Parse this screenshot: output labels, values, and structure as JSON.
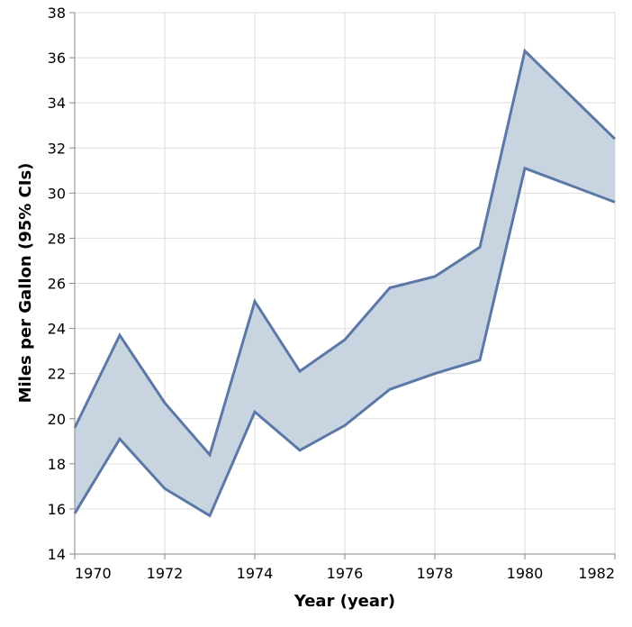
{
  "chart_data": {
    "type": "area",
    "xlabel": "Year (year)",
    "ylabel": "Miles per Gallon (95% CIs)",
    "xlim": [
      1970,
      1982
    ],
    "ylim": [
      14,
      38
    ],
    "x_ticks": [
      1970,
      1972,
      1974,
      1976,
      1978,
      1980,
      1982
    ],
    "y_ticks": [
      14,
      16,
      18,
      20,
      22,
      24,
      26,
      28,
      30,
      32,
      34,
      36,
      38
    ],
    "grid": true,
    "colors": {
      "band_fill": "#c9d4e1",
      "band_stroke": "#5b78a6"
    },
    "x": [
      1970,
      1971,
      1972,
      1973,
      1974,
      1975,
      1976,
      1977,
      1978,
      1979,
      1980,
      1982
    ],
    "series": [
      {
        "values": [
          19.6,
          23.7,
          20.7,
          18.4,
          25.2,
          22.1,
          23.5,
          25.8,
          26.3,
          27.6,
          36.3,
          32.4
        ]
      },
      {
        "values": [
          15.8,
          19.1,
          16.9,
          15.7,
          20.3,
          18.6,
          19.7,
          21.3,
          22.0,
          22.6,
          31.1,
          29.6
        ]
      }
    ]
  }
}
